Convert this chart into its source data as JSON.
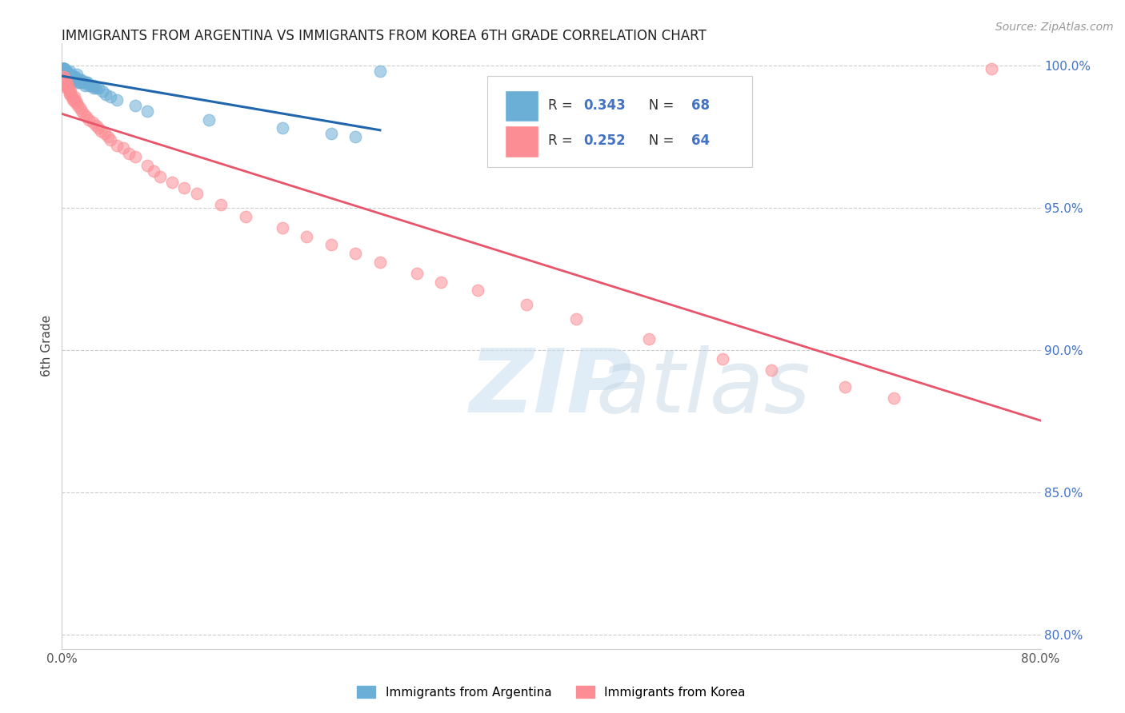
{
  "title": "IMMIGRANTS FROM ARGENTINA VS IMMIGRANTS FROM KOREA 6TH GRADE CORRELATION CHART",
  "source": "Source: ZipAtlas.com",
  "ylabel": "6th Grade",
  "xlim": [
    0.0,
    0.8
  ],
  "ylim": [
    0.795,
    1.008
  ],
  "xticks": [
    0.0,
    0.1,
    0.2,
    0.3,
    0.4,
    0.5,
    0.6,
    0.7,
    0.8
  ],
  "xticklabels": [
    "0.0%",
    "",
    "",
    "",
    "",
    "",
    "",
    "",
    "80.0%"
  ],
  "yticks_right": [
    0.8,
    0.85,
    0.9,
    0.95,
    1.0
  ],
  "yticklabels_right": [
    "80.0%",
    "85.0%",
    "90.0%",
    "95.0%",
    "100.0%"
  ],
  "argentina_color": "#6baed6",
  "korea_color": "#fc8d94",
  "argentina_line_color": "#2166ac",
  "korea_line_color": "#e8546a",
  "argentina_R": 0.343,
  "argentina_N": 68,
  "korea_R": 0.252,
  "korea_N": 64,
  "background_color": "#ffffff",
  "grid_color": "#cccccc",
  "arg_x": [
    0.0005,
    0.001,
    0.001,
    0.001,
    0.001,
    0.001,
    0.001,
    0.0015,
    0.0015,
    0.002,
    0.002,
    0.002,
    0.002,
    0.002,
    0.002,
    0.003,
    0.003,
    0.003,
    0.003,
    0.004,
    0.004,
    0.004,
    0.005,
    0.005,
    0.005,
    0.005,
    0.006,
    0.006,
    0.006,
    0.007,
    0.007,
    0.008,
    0.008,
    0.008,
    0.009,
    0.009,
    0.01,
    0.01,
    0.011,
    0.012,
    0.012,
    0.013,
    0.013,
    0.014,
    0.015,
    0.016,
    0.016,
    0.018,
    0.019,
    0.02,
    0.021,
    0.022,
    0.024,
    0.026,
    0.026,
    0.028,
    0.03,
    0.033,
    0.036,
    0.04,
    0.045,
    0.06,
    0.07,
    0.12,
    0.18,
    0.22,
    0.24,
    0.26
  ],
  "arg_y": [
    0.999,
    0.999,
    0.999,
    0.999,
    0.999,
    0.998,
    0.998,
    0.999,
    0.999,
    0.999,
    0.999,
    0.998,
    0.998,
    0.997,
    0.997,
    0.998,
    0.998,
    0.997,
    0.997,
    0.998,
    0.998,
    0.997,
    0.997,
    0.997,
    0.996,
    0.996,
    0.998,
    0.996,
    0.995,
    0.997,
    0.996,
    0.996,
    0.995,
    0.995,
    0.996,
    0.995,
    0.996,
    0.995,
    0.996,
    0.997,
    0.995,
    0.995,
    0.994,
    0.994,
    0.995,
    0.995,
    0.994,
    0.994,
    0.993,
    0.994,
    0.994,
    0.993,
    0.993,
    0.993,
    0.992,
    0.992,
    0.992,
    0.991,
    0.99,
    0.989,
    0.988,
    0.986,
    0.984,
    0.981,
    0.978,
    0.976,
    0.975,
    0.998
  ],
  "kor_x": [
    0.001,
    0.001,
    0.002,
    0.002,
    0.002,
    0.003,
    0.003,
    0.003,
    0.004,
    0.004,
    0.004,
    0.005,
    0.005,
    0.006,
    0.006,
    0.007,
    0.007,
    0.008,
    0.009,
    0.01,
    0.01,
    0.011,
    0.012,
    0.013,
    0.015,
    0.016,
    0.018,
    0.02,
    0.022,
    0.025,
    0.028,
    0.03,
    0.032,
    0.035,
    0.038,
    0.04,
    0.045,
    0.05,
    0.055,
    0.06,
    0.07,
    0.075,
    0.08,
    0.09,
    0.1,
    0.11,
    0.13,
    0.15,
    0.18,
    0.2,
    0.22,
    0.24,
    0.26,
    0.29,
    0.31,
    0.34,
    0.38,
    0.42,
    0.48,
    0.54,
    0.58,
    0.64,
    0.68,
    0.76
  ],
  "kor_y": [
    0.996,
    0.995,
    0.996,
    0.995,
    0.994,
    0.995,
    0.994,
    0.993,
    0.994,
    0.993,
    0.992,
    0.993,
    0.992,
    0.991,
    0.99,
    0.991,
    0.99,
    0.989,
    0.988,
    0.989,
    0.988,
    0.987,
    0.987,
    0.986,
    0.985,
    0.984,
    0.983,
    0.982,
    0.981,
    0.98,
    0.979,
    0.978,
    0.977,
    0.976,
    0.975,
    0.974,
    0.972,
    0.971,
    0.969,
    0.968,
    0.965,
    0.963,
    0.961,
    0.959,
    0.957,
    0.955,
    0.951,
    0.947,
    0.943,
    0.94,
    0.937,
    0.934,
    0.931,
    0.927,
    0.924,
    0.921,
    0.916,
    0.911,
    0.904,
    0.897,
    0.893,
    0.887,
    0.883,
    0.999
  ]
}
